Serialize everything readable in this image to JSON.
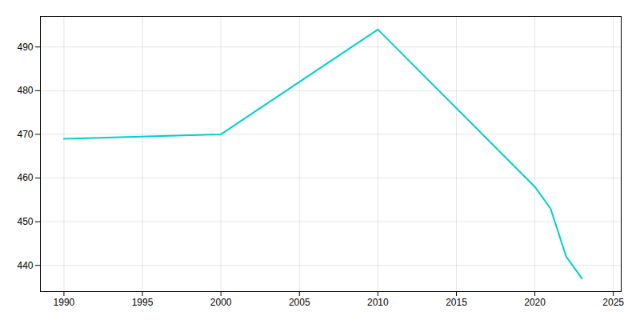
{
  "chart_data": {
    "type": "line",
    "x": [
      1990,
      2000,
      2010,
      2020,
      2021,
      2022,
      2023
    ],
    "values": [
      469,
      470,
      494,
      458,
      453,
      442,
      437
    ],
    "color": "#00CED1",
    "xlim": [
      1988.5,
      2025.5
    ],
    "ylim": [
      434,
      497
    ],
    "xticks": [
      1990,
      1995,
      2000,
      2005,
      2010,
      2015,
      2020,
      2025
    ],
    "yticks": [
      440,
      450,
      460,
      470,
      480,
      490
    ],
    "grid": true
  }
}
